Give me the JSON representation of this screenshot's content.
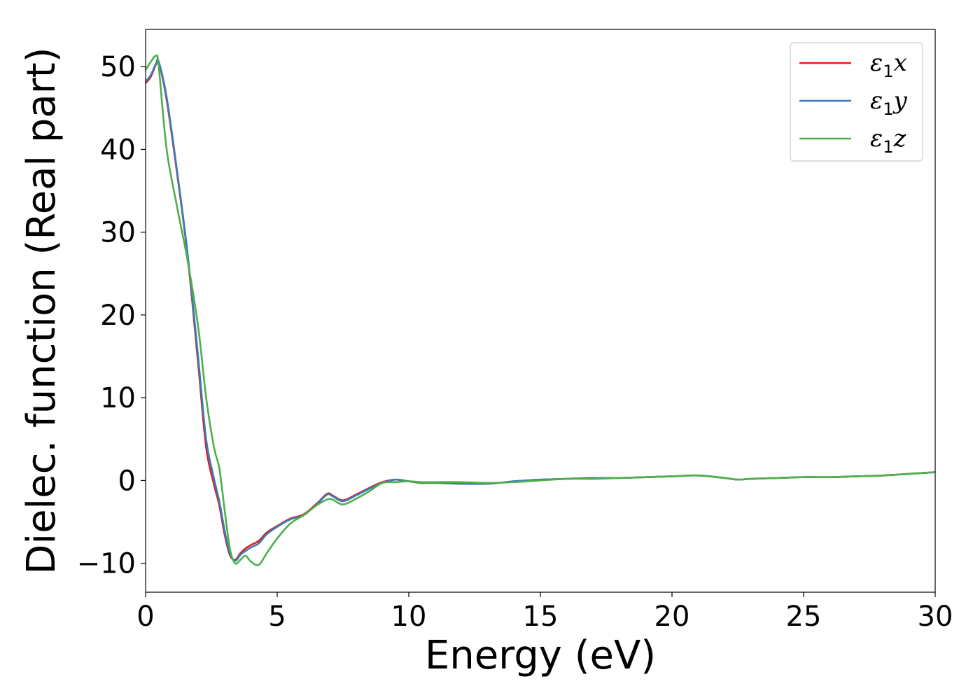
{
  "chart_data": {
    "type": "line",
    "xlabel": "Energy (eV)",
    "ylabel": "Dielec. function (Real part)",
    "xlim": [
      0,
      30
    ],
    "ylim": [
      -13.5,
      54.5
    ],
    "xticks": [
      0,
      5,
      10,
      15,
      20,
      25,
      30
    ],
    "xtick_labels": [
      "0",
      "5",
      "10",
      "15",
      "20",
      "25",
      "30"
    ],
    "yticks": [
      -10,
      0,
      10,
      20,
      30,
      40,
      50
    ],
    "ytick_labels": [
      "−10",
      "0",
      "10",
      "20",
      "30",
      "40",
      "50"
    ],
    "grid": false,
    "legend_position": "top-right",
    "series": [
      {
        "name": "ε1x",
        "label_main": "ε",
        "label_sub": "1",
        "label_tail": "x",
        "color": "#e41a1c",
        "x": [
          0,
          0.2,
          0.4,
          0.5,
          0.8,
          1.2,
          1.6,
          2.0,
          2.3,
          2.6,
          2.8,
          3.0,
          3.2,
          3.4,
          3.6,
          3.8,
          4.0,
          4.3,
          4.6,
          5.0,
          5.5,
          6.0,
          6.5,
          6.9,
          7.1,
          7.5,
          8.0,
          8.5,
          9.0,
          9.5,
          10.0,
          10.5,
          11.0,
          12.0,
          13.0,
          14.0,
          15.0,
          16.0,
          17.0,
          18.0,
          19.0,
          20.0,
          21.0,
          22.0,
          22.5,
          23.0,
          24.0,
          25.0,
          26.0,
          27.0,
          28.0,
          29.0,
          30.0
        ],
        "y": [
          48.0,
          48.8,
          50.3,
          50.5,
          46.0,
          37.0,
          27.0,
          14.0,
          4.0,
          -0.5,
          -3.0,
          -6.5,
          -9.0,
          -9.6,
          -8.8,
          -8.2,
          -7.8,
          -7.3,
          -6.3,
          -5.5,
          -4.6,
          -4.1,
          -2.8,
          -1.6,
          -1.8,
          -2.4,
          -1.7,
          -0.9,
          -0.2,
          0.1,
          -0.1,
          -0.3,
          -0.2,
          -0.3,
          -0.4,
          -0.1,
          0.1,
          0.2,
          0.3,
          0.3,
          0.4,
          0.5,
          0.6,
          0.3,
          0.1,
          0.2,
          0.3,
          0.4,
          0.4,
          0.5,
          0.6,
          0.8,
          1.0
        ]
      },
      {
        "name": "ε1y",
        "label_main": "ε",
        "label_sub": "1",
        "label_tail": "y",
        "color": "#377eb8",
        "x": [
          0,
          0.2,
          0.4,
          0.5,
          0.8,
          1.2,
          1.6,
          2.0,
          2.3,
          2.6,
          2.8,
          3.0,
          3.2,
          3.4,
          3.6,
          3.8,
          4.0,
          4.3,
          4.6,
          5.0,
          5.5,
          6.0,
          6.5,
          6.9,
          7.1,
          7.5,
          8.0,
          8.5,
          9.0,
          9.5,
          10.0,
          10.5,
          11.0,
          12.0,
          13.0,
          14.0,
          15.0,
          16.0,
          17.0,
          18.0,
          19.0,
          20.0,
          21.0,
          22.0,
          22.5,
          23.0,
          24.0,
          25.0,
          26.0,
          27.0,
          28.0,
          29.0,
          30.0
        ],
        "y": [
          48.2,
          49.0,
          50.4,
          50.6,
          46.3,
          37.3,
          27.3,
          14.8,
          5.0,
          0.2,
          -2.5,
          -6.0,
          -8.8,
          -9.7,
          -9.0,
          -8.5,
          -8.1,
          -7.6,
          -6.5,
          -5.6,
          -4.7,
          -4.2,
          -2.9,
          -1.7,
          -1.9,
          -2.5,
          -1.8,
          -1.0,
          -0.3,
          0.1,
          -0.1,
          -0.3,
          -0.3,
          -0.4,
          -0.4,
          -0.1,
          0.1,
          0.2,
          0.3,
          0.3,
          0.4,
          0.5,
          0.6,
          0.3,
          0.1,
          0.2,
          0.3,
          0.4,
          0.4,
          0.5,
          0.6,
          0.8,
          1.0
        ]
      },
      {
        "name": "ε1z",
        "label_main": "ε",
        "label_sub": "1",
        "label_tail": "z",
        "color": "#4daf4a",
        "x": [
          0,
          0.2,
          0.4,
          0.5,
          0.8,
          1.2,
          1.6,
          2.0,
          2.3,
          2.6,
          2.8,
          3.0,
          3.2,
          3.4,
          3.6,
          3.8,
          4.0,
          4.3,
          4.6,
          5.0,
          5.5,
          6.0,
          6.5,
          6.9,
          7.1,
          7.5,
          8.0,
          8.5,
          9.0,
          9.5,
          10.0,
          10.5,
          11.0,
          12.0,
          13.0,
          14.0,
          15.0,
          16.0,
          17.0,
          18.0,
          19.0,
          20.0,
          21.0,
          22.0,
          22.5,
          23.0,
          24.0,
          25.0,
          26.0,
          27.0,
          28.0,
          29.0,
          30.0
        ],
        "y": [
          49.6,
          50.6,
          51.3,
          50.0,
          40.0,
          33.0,
          26.5,
          18.5,
          10.0,
          4.0,
          1.5,
          -3.5,
          -8.2,
          -10.0,
          -9.6,
          -9.1,
          -9.8,
          -10.2,
          -8.8,
          -7.0,
          -5.2,
          -4.2,
          -3.0,
          -2.3,
          -2.3,
          -2.9,
          -2.2,
          -1.3,
          -0.3,
          -0.2,
          -0.1,
          -0.2,
          -0.2,
          -0.2,
          -0.3,
          -0.2,
          0.0,
          0.2,
          0.2,
          0.3,
          0.4,
          0.5,
          0.6,
          0.3,
          0.1,
          0.2,
          0.3,
          0.4,
          0.4,
          0.5,
          0.6,
          0.8,
          1.0
        ]
      }
    ]
  }
}
